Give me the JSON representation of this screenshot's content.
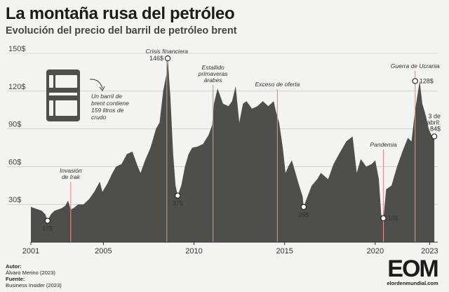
{
  "header": {
    "title": "La montaña rusa del petróleo",
    "subtitle": "Evolución del precio del barril de petróleo brent"
  },
  "credits": {
    "author_label": "Autor:",
    "author": "Álvaro Merino (2023)",
    "source_label": "Fuente:",
    "source": "Business Insider (2023)"
  },
  "logo": {
    "big": "EOM",
    "small": "elordenmundial.com"
  },
  "barrel_note": [
    "Un barril de",
    "brent contiene",
    "159 litros de",
    "crudo"
  ],
  "colors": {
    "area": "#4e4e4b",
    "event_line": "#e8898a",
    "background": "#f3f3f1",
    "grid": "#bdbdb9"
  },
  "chart_data": {
    "type": "area",
    "title": "La montaña rusa del petróleo",
    "subtitle": "Evolución del precio del barril de petróleo brent",
    "xlabel": "",
    "ylabel": "",
    "xlim": [
      2001,
      2023.45
    ],
    "ylim": [
      0,
      150
    ],
    "grid": true,
    "y_ticks": [
      {
        "value": 30,
        "label": "30$"
      },
      {
        "value": 60,
        "label": "60$"
      },
      {
        "value": 90,
        "label": "90$"
      },
      {
        "value": 120,
        "label": "120$"
      },
      {
        "value": 150,
        "label": "150$"
      }
    ],
    "x_ticks": [
      {
        "value": 2001,
        "label": "2001"
      },
      {
        "value": 2005,
        "label": "2005"
      },
      {
        "value": 2010,
        "label": "2010"
      },
      {
        "value": 2015,
        "label": "2015"
      },
      {
        "value": 2020,
        "label": "2020"
      },
      {
        "value": 2023,
        "label": "2023"
      }
    ],
    "series": [
      {
        "x": [
          2001.0,
          2001.2,
          2001.4,
          2001.6,
          2001.8,
          2001.92,
          2002.1,
          2002.3,
          2002.5,
          2002.7,
          2002.9,
          2003.05,
          2003.2,
          2003.35,
          2003.6,
          2003.9,
          2004.2,
          2004.5,
          2004.8,
          2004.95,
          2005.2,
          2005.5,
          2005.7,
          2006.0,
          2006.3,
          2006.6,
          2006.9,
          2007.05,
          2007.3,
          2007.6,
          2007.9,
          2008.1,
          2008.3,
          2008.5,
          2008.55,
          2008.7,
          2008.85,
          2008.98,
          2009.1,
          2009.3,
          2009.5,
          2009.7,
          2009.9,
          2010.2,
          2010.5,
          2010.8,
          2011.0,
          2011.1,
          2011.3,
          2011.6,
          2011.9,
          2012.1,
          2012.3,
          2012.5,
          2012.7,
          2012.9,
          2013.2,
          2013.5,
          2013.8,
          2014.1,
          2014.4,
          2014.5,
          2014.7,
          2014.9,
          2015.05,
          2015.2,
          2015.4,
          2015.6,
          2015.8,
          2016.0,
          2016.05,
          2016.2,
          2016.5,
          2016.8,
          2017.0,
          2017.4,
          2017.7,
          2018.0,
          2018.4,
          2018.75,
          2018.98,
          2019.2,
          2019.5,
          2019.8,
          2020.0,
          2020.2,
          2020.33,
          2020.45,
          2020.6,
          2020.9,
          2021.2,
          2021.5,
          2021.8,
          2022.0,
          2022.2,
          2022.45,
          2022.6,
          2022.8,
          2022.95,
          2023.1,
          2023.26
        ],
        "y": [
          28,
          27,
          26,
          25,
          22,
          17,
          22,
          25,
          26,
          27,
          29,
          33,
          26,
          27,
          30,
          30,
          34,
          40,
          48,
          40,
          46,
          55,
          60,
          62,
          70,
          72,
          60,
          55,
          65,
          75,
          90,
          95,
          120,
          135,
          146,
          115,
          70,
          45,
          37,
          45,
          60,
          70,
          75,
          76,
          78,
          85,
          93,
          110,
          122,
          110,
          108,
          112,
          124,
          95,
          110,
          112,
          106,
          108,
          112,
          108,
          112,
          105,
          95,
          75,
          55,
          60,
          65,
          55,
          45,
          36,
          28,
          34,
          45,
          50,
          55,
          50,
          62,
          70,
          80,
          84,
          55,
          66,
          60,
          62,
          65,
          50,
          22,
          19,
          42,
          45,
          60,
          72,
          83,
          80,
          105,
          128,
          110,
          100,
          90,
          85,
          84
        ]
      }
    ],
    "events": [
      {
        "year": 2003.2,
        "label_lines": [
          "Invasión",
          "de Irak"
        ]
      },
      {
        "year": 2008.5,
        "label_lines": [
          "Crisis financiera"
        ]
      },
      {
        "year": 2011.05,
        "label_lines": [
          "Estallido",
          "primaveras",
          "árabes"
        ]
      },
      {
        "year": 2014.6,
        "label_lines": [
          "Exceso de oferta"
        ]
      },
      {
        "year": 2020.45,
        "label_lines": [
          "Pandemia"
        ]
      },
      {
        "year": 2022.2,
        "label_lines": [
          "Guerra de Ucrania"
        ]
      }
    ],
    "data_labels": [
      {
        "year": 2001.92,
        "value": 17,
        "text": "17$"
      },
      {
        "year": 2008.55,
        "value": 146,
        "text": "146$"
      },
      {
        "year": 2009.1,
        "value": 37,
        "text": "37$"
      },
      {
        "year": 2016.05,
        "value": 28,
        "text": "28$"
      },
      {
        "year": 2020.45,
        "value": 19,
        "text": "19$"
      },
      {
        "year": 2022.2,
        "value": 128,
        "text": "128$"
      },
      {
        "year": 2023.26,
        "value": 84,
        "text_lines": [
          "3 de",
          "abril:",
          "84$"
        ]
      }
    ]
  }
}
